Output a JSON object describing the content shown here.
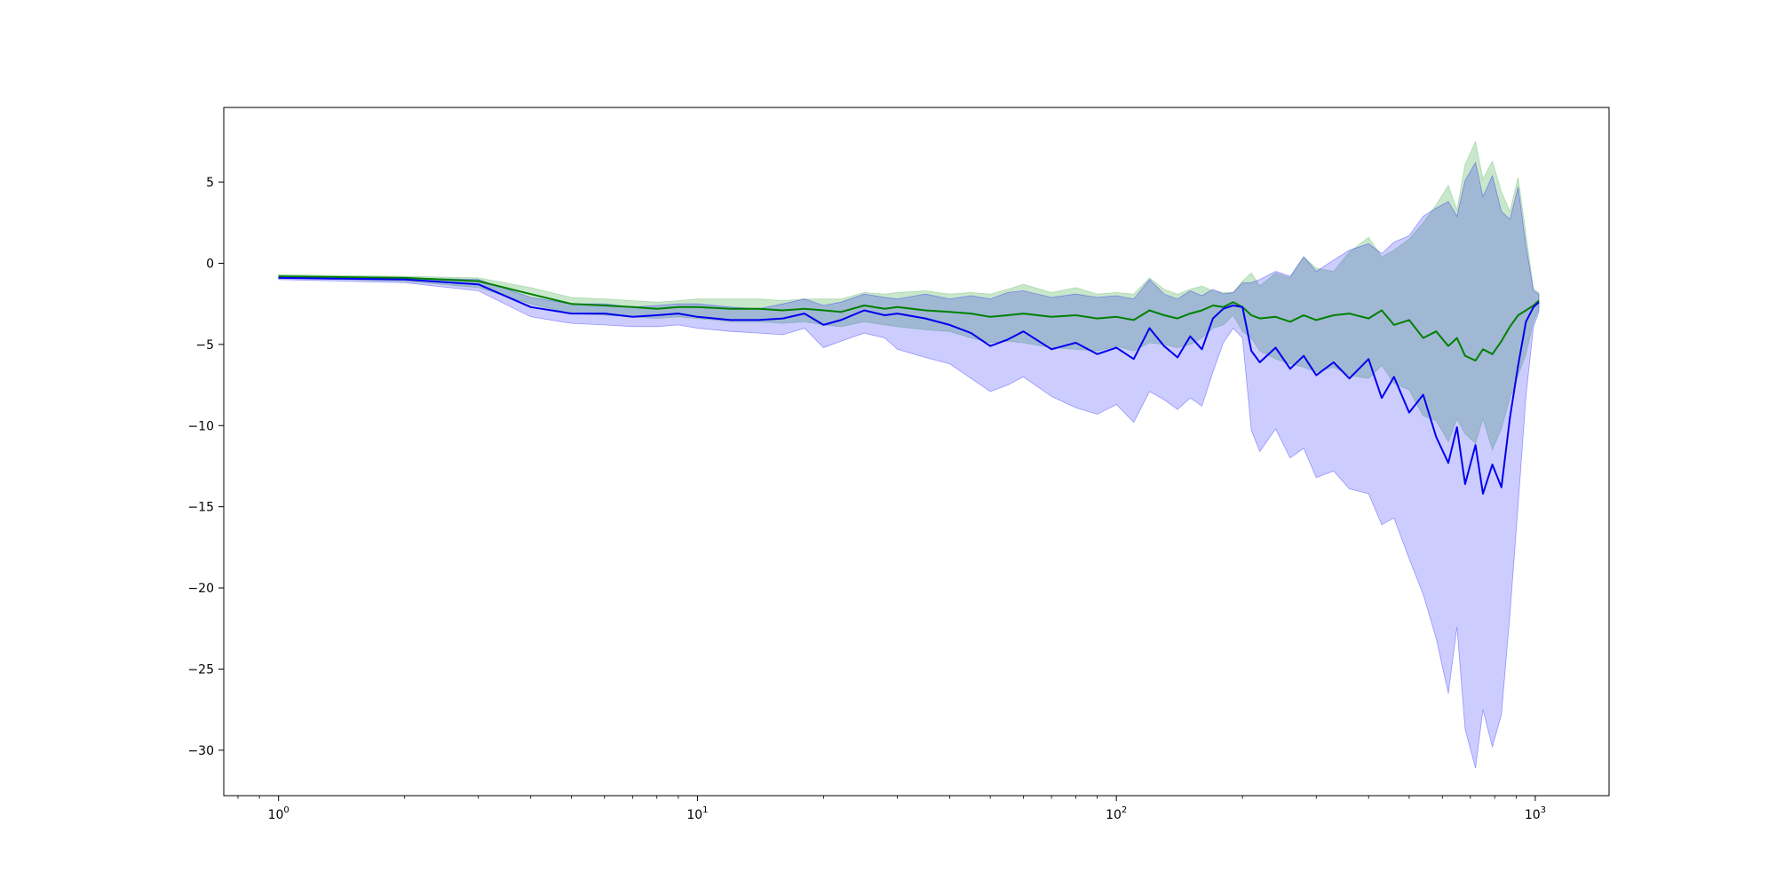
{
  "chart_data": {
    "type": "line",
    "title": "",
    "xlabel": "",
    "ylabel": "",
    "xscale": "log",
    "xlim": [
      0.74,
      1500
    ],
    "ylim": [
      -32.8,
      9.6
    ],
    "grid": false,
    "legend": "none",
    "x_ticks": [
      {
        "value": 1,
        "base": "10",
        "exp": "0"
      },
      {
        "value": 10,
        "base": "10",
        "exp": "1"
      },
      {
        "value": 100,
        "base": "10",
        "exp": "2"
      },
      {
        "value": 1000,
        "base": "10",
        "exp": "3"
      }
    ],
    "y_ticks": [
      {
        "value": 5,
        "label": "5"
      },
      {
        "value": 0,
        "label": "0"
      },
      {
        "value": -5,
        "label": "−5"
      },
      {
        "value": -10,
        "label": "−10"
      },
      {
        "value": -15,
        "label": "−15"
      },
      {
        "value": -20,
        "label": "−20"
      },
      {
        "value": -25,
        "label": "−25"
      },
      {
        "value": -30,
        "label": "−30"
      }
    ],
    "series": [
      {
        "color": "#008000",
        "band_color": "#4caf50",
        "band_opacity": 0.3,
        "points": [
          [
            1,
            -0.8,
            -0.9,
            -0.7
          ],
          [
            2,
            -0.9,
            -1.1,
            -0.8
          ],
          [
            3,
            -1.1,
            -1.5,
            -0.9
          ],
          [
            4,
            -1.9,
            -2.5,
            -1.5
          ],
          [
            5,
            -2.5,
            -3.1,
            -2.1
          ],
          [
            6,
            -2.6,
            -3.2,
            -2.2
          ],
          [
            7,
            -2.7,
            -3.3,
            -2.3
          ],
          [
            8,
            -2.8,
            -3.4,
            -2.4
          ],
          [
            9,
            -2.7,
            -3.3,
            -2.3
          ],
          [
            10,
            -2.7,
            -3.4,
            -2.2
          ],
          [
            12,
            -2.8,
            -3.6,
            -2.2
          ],
          [
            14,
            -2.8,
            -3.6,
            -2.2
          ],
          [
            16,
            -2.9,
            -3.7,
            -2.3
          ],
          [
            18,
            -2.8,
            -3.6,
            -2.2
          ],
          [
            20,
            -2.9,
            -3.8,
            -2.2
          ],
          [
            22,
            -3.0,
            -3.9,
            -2.2
          ],
          [
            25,
            -2.6,
            -3.6,
            -1.8
          ],
          [
            28,
            -2.8,
            -3.8,
            -1.9
          ],
          [
            30,
            -2.7,
            -3.9,
            -1.8
          ],
          [
            35,
            -2.9,
            -4.1,
            -1.7
          ],
          [
            40,
            -3.0,
            -4.2,
            -1.9
          ],
          [
            45,
            -3.1,
            -4.6,
            -1.8
          ],
          [
            50,
            -3.3,
            -4.9,
            -1.9
          ],
          [
            55,
            -3.2,
            -4.8,
            -1.6
          ],
          [
            60,
            -3.1,
            -4.9,
            -1.3
          ],
          [
            70,
            -3.3,
            -5.2,
            -1.8
          ],
          [
            80,
            -3.2,
            -5.3,
            -1.5
          ],
          [
            90,
            -3.4,
            -5.4,
            -1.9
          ],
          [
            100,
            -3.3,
            -5.1,
            -1.8
          ],
          [
            110,
            -3.5,
            -5.4,
            -1.9
          ],
          [
            120,
            -2.9,
            -4.9,
            -0.9
          ],
          [
            130,
            -3.2,
            -5.0,
            -1.6
          ],
          [
            140,
            -3.4,
            -5.2,
            -1.9
          ],
          [
            150,
            -3.1,
            -5.0,
            -1.6
          ],
          [
            160,
            -2.9,
            -4.6,
            -1.4
          ],
          [
            170,
            -2.6,
            -4.0,
            -1.7
          ],
          [
            180,
            -2.7,
            -3.8,
            -1.8
          ],
          [
            190,
            -2.4,
            -3.2,
            -1.8
          ],
          [
            200,
            -2.7,
            -4.2,
            -1.1
          ],
          [
            210,
            -3.2,
            -4.6,
            -0.6
          ],
          [
            220,
            -3.4,
            -5.4,
            -1.4
          ],
          [
            240,
            -3.3,
            -5.9,
            -0.6
          ],
          [
            260,
            -3.6,
            -6.2,
            -0.9
          ],
          [
            280,
            -3.2,
            -6.4,
            0.4
          ],
          [
            300,
            -3.5,
            -6.7,
            -0.3
          ],
          [
            330,
            -3.2,
            -6.4,
            -0.5
          ],
          [
            360,
            -3.1,
            -6.9,
            0.7
          ],
          [
            400,
            -3.4,
            -7.1,
            1.6
          ],
          [
            430,
            -2.9,
            -6.3,
            0.4
          ],
          [
            460,
            -3.8,
            -7.4,
            0.8
          ],
          [
            500,
            -3.5,
            -7.8,
            1.5
          ],
          [
            540,
            -4.6,
            -9.4,
            2.5
          ],
          [
            580,
            -4.2,
            -9.7,
            3.6
          ],
          [
            620,
            -5.1,
            -11.0,
            4.8
          ],
          [
            650,
            -4.6,
            -9.6,
            3.3
          ],
          [
            680,
            -5.7,
            -10.5,
            6.1
          ],
          [
            720,
            -6.0,
            -11.1,
            7.5
          ],
          [
            750,
            -5.3,
            -9.6,
            5.2
          ],
          [
            790,
            -5.6,
            -11.5,
            6.3
          ],
          [
            830,
            -4.8,
            -10.2,
            4.4
          ],
          [
            870,
            -3.9,
            -8.3,
            3.2
          ],
          [
            910,
            -3.2,
            -6.9,
            5.3
          ],
          [
            950,
            -2.9,
            -5.6,
            1.8
          ],
          [
            990,
            -2.6,
            -3.6,
            -1.6
          ],
          [
            1020,
            -2.3,
            -2.8,
            -1.8
          ]
        ]
      },
      {
        "color": "#0000ee",
        "band_color": "#0000ff",
        "band_opacity": 0.2,
        "points": [
          [
            1,
            -0.9,
            -1.0,
            -0.8
          ],
          [
            2,
            -1.0,
            -1.2,
            -0.9
          ],
          [
            3,
            -1.3,
            -1.7,
            -1.0
          ],
          [
            4,
            -2.7,
            -3.3,
            -2.1
          ],
          [
            5,
            -3.1,
            -3.7,
            -2.5
          ],
          [
            6,
            -3.1,
            -3.8,
            -2.5
          ],
          [
            7,
            -3.3,
            -3.9,
            -2.7
          ],
          [
            8,
            -3.2,
            -3.9,
            -2.6
          ],
          [
            9,
            -3.1,
            -3.8,
            -2.5
          ],
          [
            10,
            -3.3,
            -4.0,
            -2.5
          ],
          [
            12,
            -3.5,
            -4.2,
            -2.7
          ],
          [
            14,
            -3.5,
            -4.3,
            -2.8
          ],
          [
            16,
            -3.4,
            -4.4,
            -2.5
          ],
          [
            18,
            -3.1,
            -4.0,
            -2.2
          ],
          [
            20,
            -3.8,
            -5.2,
            -2.6
          ],
          [
            22,
            -3.5,
            -4.8,
            -2.4
          ],
          [
            25,
            -2.9,
            -4.3,
            -1.9
          ],
          [
            28,
            -3.2,
            -4.6,
            -2.1
          ],
          [
            30,
            -3.1,
            -5.3,
            -2.2
          ],
          [
            35,
            -3.4,
            -5.8,
            -1.9
          ],
          [
            40,
            -3.8,
            -6.2,
            -2.2
          ],
          [
            45,
            -4.3,
            -7.1,
            -2.0
          ],
          [
            50,
            -5.1,
            -7.9,
            -2.2
          ],
          [
            55,
            -4.7,
            -7.5,
            -1.8
          ],
          [
            60,
            -4.2,
            -7.0,
            -1.7
          ],
          [
            70,
            -5.3,
            -8.2,
            -2.1
          ],
          [
            80,
            -4.9,
            -8.9,
            -1.9
          ],
          [
            90,
            -5.6,
            -9.3,
            -2.1
          ],
          [
            100,
            -5.2,
            -8.7,
            -2.0
          ],
          [
            110,
            -5.9,
            -9.8,
            -2.2
          ],
          [
            120,
            -4.0,
            -7.9,
            -1.0
          ],
          [
            130,
            -5.1,
            -8.4,
            -1.9
          ],
          [
            140,
            -5.8,
            -9.0,
            -2.2
          ],
          [
            150,
            -4.5,
            -8.3,
            -1.7
          ],
          [
            160,
            -5.3,
            -8.8,
            -2.0
          ],
          [
            170,
            -3.4,
            -6.7,
            -1.6
          ],
          [
            180,
            -2.8,
            -4.9,
            -1.9
          ],
          [
            190,
            -2.6,
            -4.0,
            -1.8
          ],
          [
            200,
            -2.7,
            -4.6,
            -1.2
          ],
          [
            210,
            -5.4,
            -10.3,
            -1.2
          ],
          [
            220,
            -6.1,
            -11.6,
            -1.0
          ],
          [
            240,
            -5.2,
            -10.2,
            -0.5
          ],
          [
            260,
            -6.5,
            -12.0,
            -0.8
          ],
          [
            280,
            -5.7,
            -11.4,
            0.4
          ],
          [
            300,
            -6.9,
            -13.2,
            -0.5
          ],
          [
            330,
            -6.1,
            -12.8,
            0.2
          ],
          [
            360,
            -7.1,
            -13.9,
            0.8
          ],
          [
            400,
            -5.9,
            -14.2,
            1.2
          ],
          [
            430,
            -8.3,
            -16.1,
            0.6
          ],
          [
            460,
            -7.0,
            -15.7,
            1.3
          ],
          [
            500,
            -9.2,
            -18.2,
            1.7
          ],
          [
            540,
            -8.1,
            -20.4,
            2.9
          ],
          [
            580,
            -10.7,
            -23.1,
            3.4
          ],
          [
            620,
            -12.3,
            -26.5,
            3.8
          ],
          [
            650,
            -10.1,
            -22.4,
            2.9
          ],
          [
            680,
            -13.6,
            -28.7,
            5.1
          ],
          [
            720,
            -11.2,
            -31.1,
            6.2
          ],
          [
            750,
            -14.2,
            -27.5,
            4.1
          ],
          [
            790,
            -12.4,
            -29.8,
            5.4
          ],
          [
            830,
            -13.8,
            -27.8,
            3.2
          ],
          [
            870,
            -9.5,
            -21.6,
            2.7
          ],
          [
            910,
            -6.3,
            -14.9,
            4.7
          ],
          [
            950,
            -3.6,
            -8.2,
            1.1
          ],
          [
            990,
            -2.7,
            -3.9,
            -1.7
          ],
          [
            1020,
            -2.4,
            -3.0,
            -1.9
          ]
        ]
      }
    ]
  }
}
